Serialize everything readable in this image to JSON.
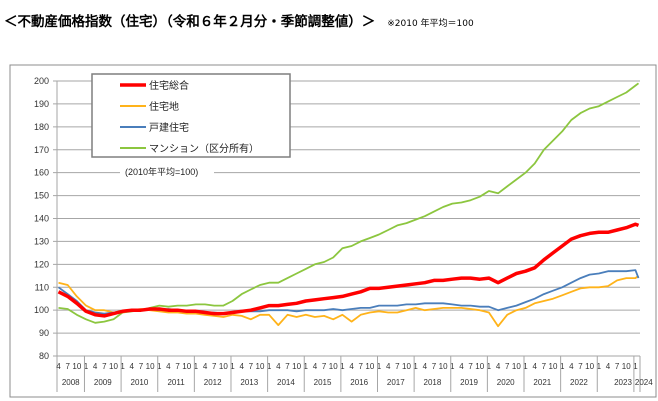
{
  "title": "＜不動産価格指数（住宅）（令和６年２月分・季節調整値）＞",
  "note": "※2010 年平均＝100",
  "chart_data": {
    "type": "line",
    "title": "不動産価格指数（住宅）（令和６年２月分・季節調整値）",
    "subtitle": "(2010年平均=100)",
    "xlabel": "",
    "ylabel": "",
    "ylim": [
      80,
      200
    ],
    "yticks": [
      "80",
      "90",
      "100",
      "110",
      "120",
      "130",
      "140",
      "150",
      "160",
      "170",
      "180",
      "190",
      "200"
    ],
    "grid": true,
    "legend_position": "top-left",
    "x_range": [
      "2008-04",
      "2024-02"
    ],
    "month_ticks": [
      "1",
      "4",
      "7",
      "10"
    ],
    "year_labels": [
      "2008",
      "2009",
      "2010",
      "2011",
      "2012",
      "2013",
      "2014",
      "2015",
      "2016",
      "2017",
      "2018",
      "2019",
      "2020",
      "2021",
      "2022",
      "2023",
      "2024"
    ],
    "x": [
      "2008-04",
      "2008-07",
      "2008-10",
      "2009-01",
      "2009-04",
      "2009-07",
      "2009-10",
      "2010-01",
      "2010-04",
      "2010-07",
      "2010-10",
      "2011-01",
      "2011-04",
      "2011-07",
      "2011-10",
      "2012-01",
      "2012-04",
      "2012-07",
      "2012-10",
      "2013-01",
      "2013-04",
      "2013-07",
      "2013-10",
      "2014-01",
      "2014-04",
      "2014-07",
      "2014-10",
      "2015-01",
      "2015-04",
      "2015-07",
      "2015-10",
      "2016-01",
      "2016-04",
      "2016-07",
      "2016-10",
      "2017-01",
      "2017-04",
      "2017-07",
      "2017-10",
      "2018-01",
      "2018-04",
      "2018-07",
      "2018-10",
      "2019-01",
      "2019-04",
      "2019-07",
      "2019-10",
      "2020-01",
      "2020-04",
      "2020-07",
      "2020-10",
      "2021-01",
      "2021-04",
      "2021-07",
      "2021-10",
      "2022-01",
      "2022-04",
      "2022-07",
      "2022-10",
      "2023-01",
      "2023-04",
      "2023-07",
      "2023-10",
      "2024-01",
      "2024-02"
    ],
    "series": [
      {
        "name": "住宅総合",
        "color": "#ff0000",
        "width": 3.5,
        "values": [
          108,
          106,
          103,
          99.5,
          98,
          97.5,
          98.5,
          99.5,
          100,
          100,
          100.5,
          100.5,
          100,
          100,
          99.5,
          99.5,
          99,
          98.5,
          98.5,
          99,
          99.5,
          100,
          101,
          102,
          102,
          102.5,
          103,
          104,
          104.5,
          105,
          105.5,
          106,
          107,
          108,
          109.5,
          109.5,
          110,
          110.5,
          111,
          111.5,
          112,
          113,
          113,
          113.5,
          114,
          114,
          113.5,
          114,
          112,
          114,
          116,
          117,
          118.5,
          122,
          125,
          128,
          131,
          132.5,
          133.5,
          134,
          134,
          135,
          136,
          137.5,
          137
        ]
      },
      {
        "name": "住宅地",
        "color": "#ffb31a",
        "width": 1.8,
        "values": [
          112,
          111,
          106,
          102,
          100,
          100,
          99,
          99,
          100,
          100.5,
          100,
          99.5,
          99,
          99,
          98.5,
          98.5,
          98,
          97.5,
          97,
          98,
          97.5,
          96,
          98,
          98,
          93.5,
          98,
          97,
          98,
          97,
          97.5,
          96,
          98,
          95,
          98,
          99,
          99.5,
          99,
          99,
          100,
          101,
          100,
          100.5,
          101,
          101,
          101,
          100.5,
          100,
          99,
          93,
          98,
          100,
          101,
          103,
          104,
          105,
          106.5,
          108,
          109.5,
          110,
          110,
          110.5,
          113,
          114,
          114,
          115
        ]
      },
      {
        "name": "戸建住宅",
        "color": "#4a7ebb",
        "width": 1.8,
        "values": [
          110,
          107,
          104,
          100,
          99,
          98.5,
          99,
          99.5,
          100,
          100,
          100.5,
          100,
          100.5,
          100,
          99.5,
          99.5,
          99,
          99,
          98.5,
          99,
          99.5,
          99.5,
          99.5,
          100,
          100,
          100,
          99.5,
          100,
          100,
          100,
          100.5,
          100,
          100.5,
          101,
          101,
          102,
          102,
          102,
          102.5,
          102.5,
          103,
          103,
          103,
          102.5,
          102,
          102,
          101.5,
          101.5,
          100,
          101,
          102,
          103.5,
          105,
          107,
          108.5,
          110,
          112,
          114,
          115.5,
          116,
          117,
          117,
          117,
          117.5,
          114
        ]
      },
      {
        "name": "マンション（区分所有）",
        "color": "#8cc63f",
        "width": 1.8,
        "values": [
          101,
          100.5,
          98,
          96,
          94.5,
          95,
          96,
          99,
          99.5,
          100,
          101,
          102,
          101.5,
          102,
          102,
          102.5,
          102.5,
          102,
          102,
          104,
          107,
          109,
          111,
          112,
          112,
          114,
          116,
          118,
          120,
          121,
          123,
          127,
          128,
          130,
          131.5,
          133,
          135,
          137,
          138,
          139.5,
          141,
          143,
          145,
          146.5,
          147,
          148,
          149.5,
          152,
          151,
          154,
          157,
          160,
          164,
          170,
          174,
          178,
          183,
          186,
          188,
          189,
          191,
          193,
          195,
          198,
          199
        ]
      }
    ]
  }
}
